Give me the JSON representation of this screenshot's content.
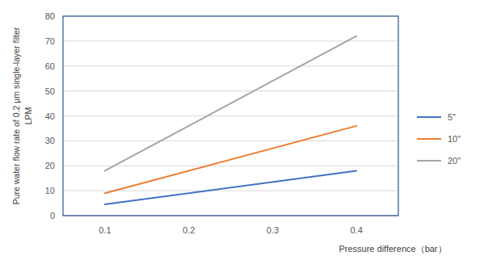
{
  "chart_data": {
    "type": "line",
    "ylabel": [
      "Pure water flow rate of 0.2 μm single-layer filter",
      "LPM"
    ],
    "xlabel": "Pressure difference（bar）",
    "x": [
      0.1,
      0.4
    ],
    "series": [
      {
        "name": "5\"",
        "color": "#4472c4",
        "values": [
          4.5,
          18
        ]
      },
      {
        "name": "10\"",
        "color": "#ed7d31",
        "values": [
          9,
          36
        ]
      },
      {
        "name": "20\"",
        "color": "#a5a5a5",
        "values": [
          18,
          72
        ]
      }
    ],
    "xlim": [
      0.05,
      0.45
    ],
    "xticks": [
      0.1,
      0.2,
      0.3,
      0.4
    ],
    "ylim": [
      0,
      80
    ],
    "yticks": [
      0,
      10,
      20,
      30,
      40,
      50,
      60,
      70,
      80
    ],
    "grid": true,
    "legend": "right"
  }
}
